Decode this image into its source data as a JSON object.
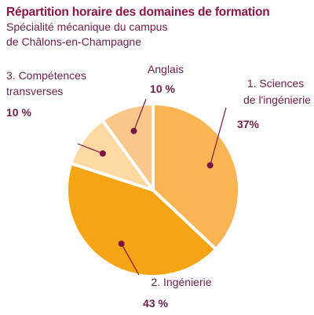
{
  "chart_data": {
    "type": "pie",
    "title": "Répartition horaire des domaines de formation",
    "subtitle_line1": "Spécialité mécanique du campus",
    "subtitle_line2": "de Châlons-en-Champagne",
    "slices": [
      {
        "label_line1": "1. Sciences",
        "label_line2": "de l'ingénierie",
        "value": 37,
        "value_label": "37%",
        "color": "#fbb454"
      },
      {
        "label_line1": "2. Ingénierie",
        "label_line2": "",
        "value": 43,
        "value_label": "43 %",
        "color": "#f5a414"
      },
      {
        "label_line1": "3. Compétences",
        "label_line2": "transverses",
        "value": 10,
        "value_label": "10 %",
        "color": "#fdd9a2"
      },
      {
        "label_line1": "Anglais",
        "label_line2": "",
        "value": 10,
        "value_label": "10 %",
        "color": "#f9c789"
      }
    ],
    "legend": "none",
    "grid": false
  },
  "colors": {
    "title": "#8b1547",
    "text": "#6e1d4a",
    "marker": "#7a1446",
    "separator": "#ffffff"
  }
}
